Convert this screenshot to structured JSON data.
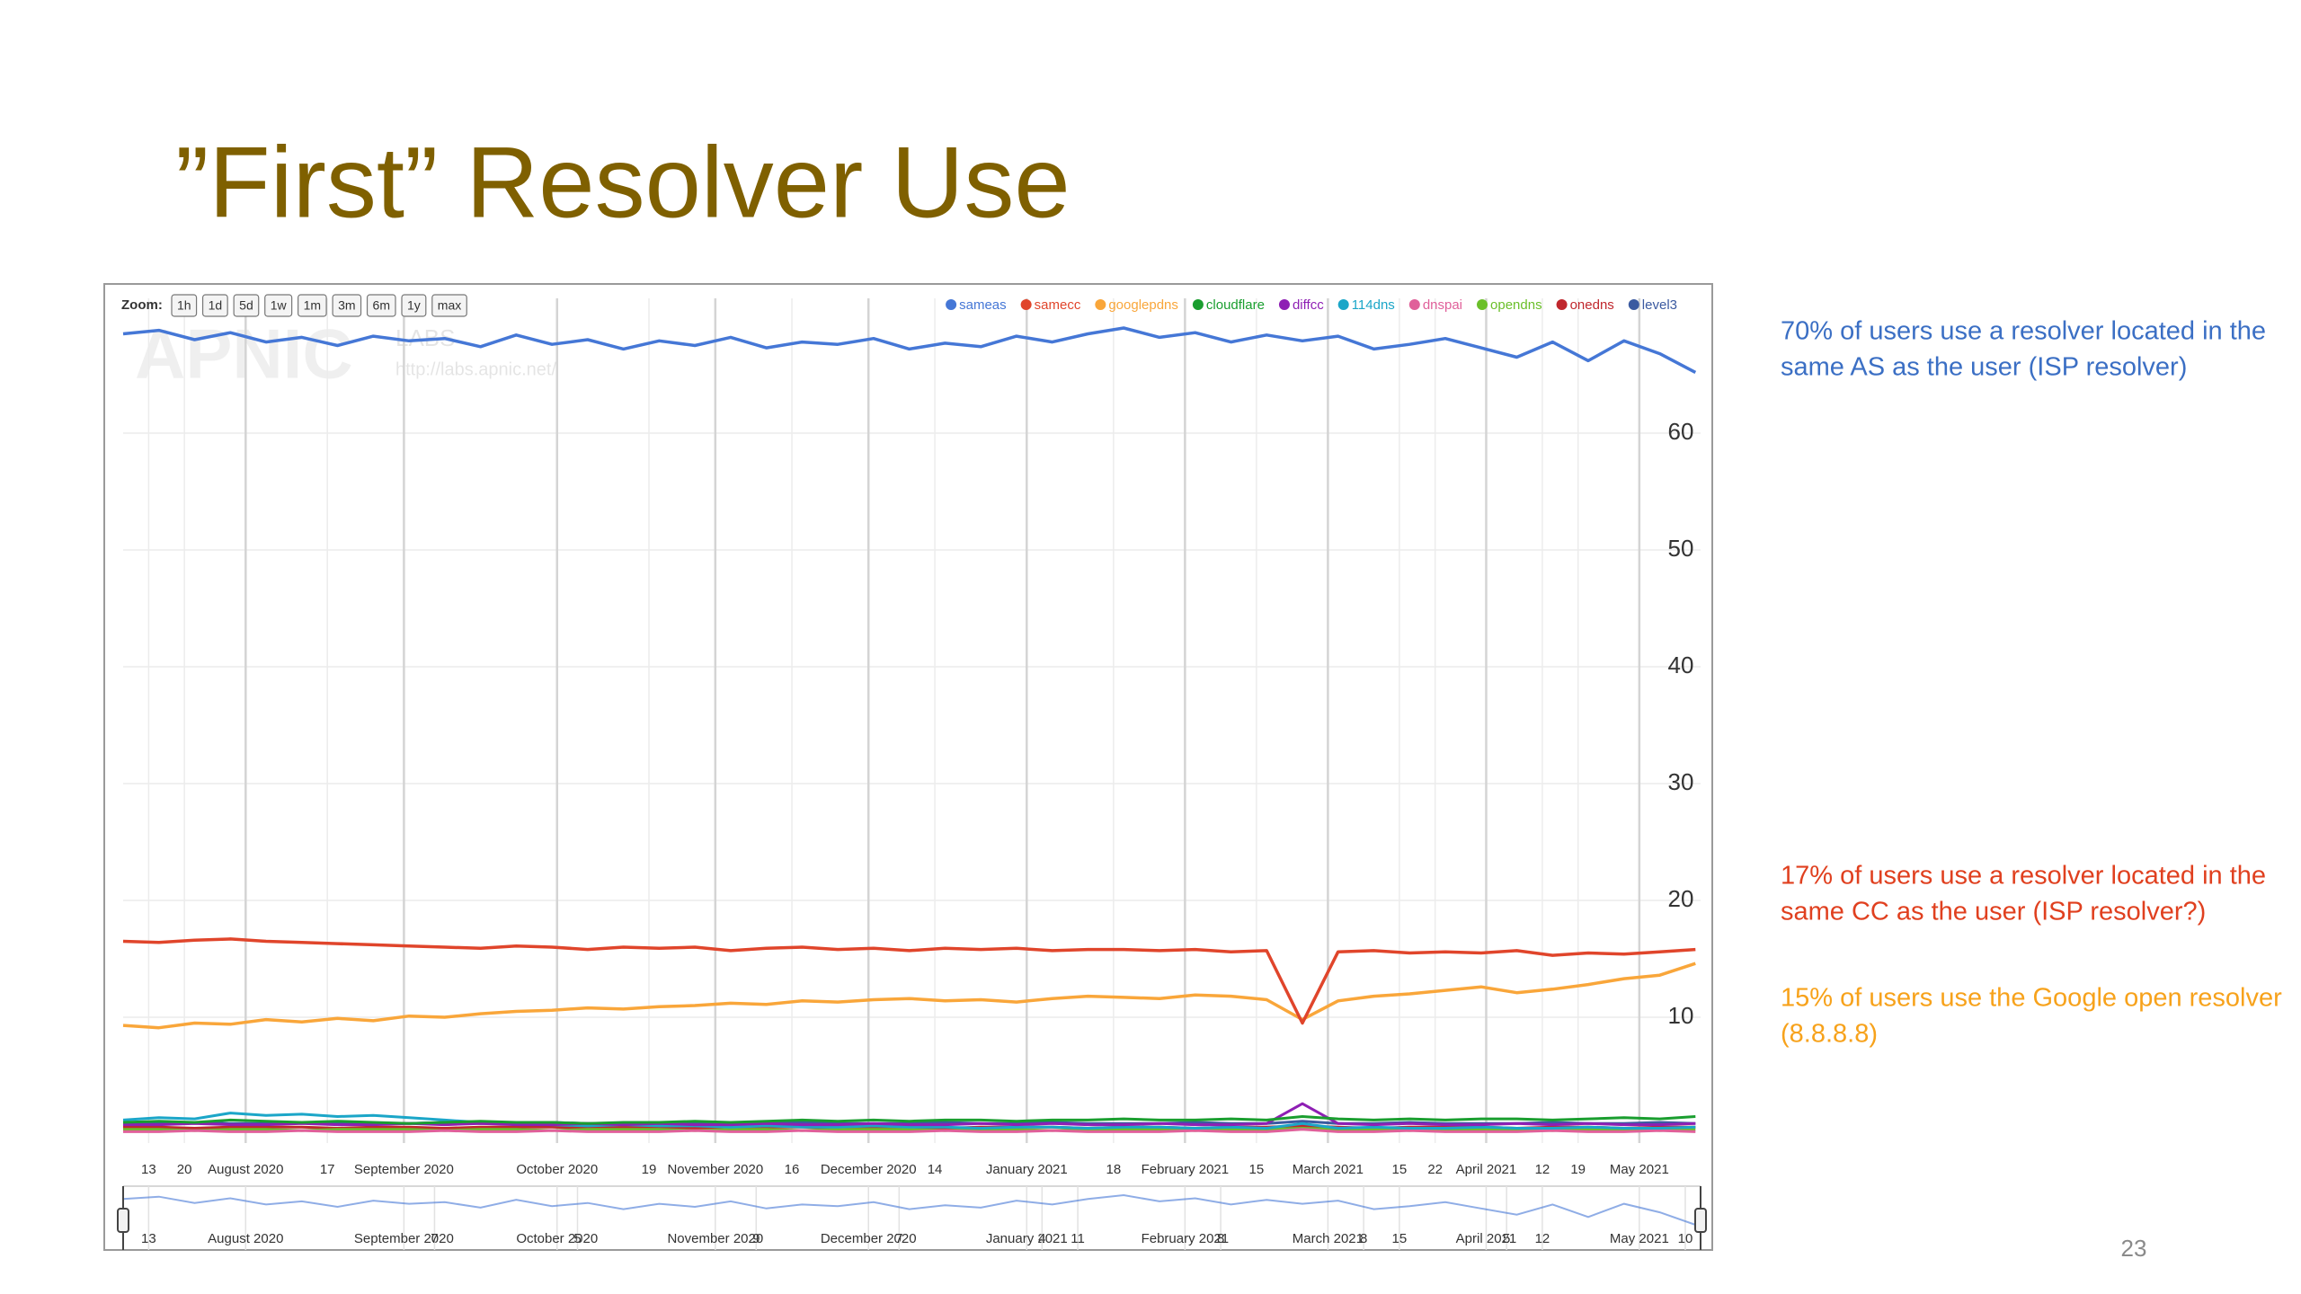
{
  "title": "”First” Resolver Use",
  "page_number": "23",
  "annotations": [
    {
      "color": "#3b6fc4",
      "lines": [
        "70% of users use a resolver located in the",
        "same AS as the user (ISP resolver)"
      ]
    },
    {
      "color": "#e0401f",
      "lines": [
        "17% of users use a resolver located in the",
        "same CC as the user (ISP resolver?)"
      ]
    },
    {
      "color": "#f7a21b",
      "lines": [
        "15% of users use the Google open resolver",
        "(8.8.8.8)"
      ]
    }
  ],
  "chart_data": {
    "type": "line",
    "zoom_label": "Zoom:",
    "zoom_buttons": [
      "1h",
      "1d",
      "5d",
      "1w",
      "1m",
      "3m",
      "6m",
      "1y",
      "max"
    ],
    "watermark": {
      "logo": "APNIC",
      "sub": "LABS",
      "url": "http://labs.apnic.net/"
    },
    "grid": true,
    "xlim": [
      "2020-07-08",
      "2021-05-13"
    ],
    "ylim": [
      0,
      70
    ],
    "yticks": [
      10,
      20,
      30,
      40,
      50,
      60
    ],
    "xticks": [
      {
        "value": "2020-07-13",
        "label": "13"
      },
      {
        "value": "2020-07-20",
        "label": "20"
      },
      {
        "value": "2020-08-01",
        "label": "August 2020"
      },
      {
        "value": "2020-08-17",
        "label": "17"
      },
      {
        "value": "2020-09-01",
        "label": "September 2020"
      },
      {
        "value": "2020-10-01",
        "label": "October 2020"
      },
      {
        "value": "2020-10-19",
        "label": "19"
      },
      {
        "value": "2020-11-01",
        "label": "November 2020"
      },
      {
        "value": "2020-11-16",
        "label": "16"
      },
      {
        "value": "2020-12-01",
        "label": "December 2020"
      },
      {
        "value": "2020-12-14",
        "label": "14"
      },
      {
        "value": "2021-01-01",
        "label": "January 2021"
      },
      {
        "value": "2021-01-18",
        "label": "18"
      },
      {
        "value": "2021-02-01",
        "label": "February 2021"
      },
      {
        "value": "2021-02-15",
        "label": "15"
      },
      {
        "value": "2021-03-01",
        "label": "March 2021"
      },
      {
        "value": "2021-03-15",
        "label": "15"
      },
      {
        "value": "2021-03-22",
        "label": "22"
      },
      {
        "value": "2021-04-01",
        "label": "April 2021"
      },
      {
        "value": "2021-04-12",
        "label": "12"
      },
      {
        "value": "2021-04-19",
        "label": "19"
      },
      {
        "value": "2021-05-01",
        "label": "May 2021"
      }
    ],
    "navigator_xticks": [
      {
        "value": "2020-07-13",
        "label": "13"
      },
      {
        "value": "2020-08-01",
        "label": "August 2020"
      },
      {
        "value": "2020-09-01",
        "label": "September 2020"
      },
      {
        "value": "2020-09-07",
        "label": "7"
      },
      {
        "value": "2020-10-01",
        "label": "October 2020"
      },
      {
        "value": "2020-10-05",
        "label": "5"
      },
      {
        "value": "2020-11-01",
        "label": "November 2020"
      },
      {
        "value": "2020-11-09",
        "label": "9"
      },
      {
        "value": "2020-12-01",
        "label": "December 2020"
      },
      {
        "value": "2020-12-07",
        "label": "7"
      },
      {
        "value": "2021-01-01",
        "label": "January 2021"
      },
      {
        "value": "2021-01-04",
        "label": "4"
      },
      {
        "value": "2021-01-11",
        "label": "11"
      },
      {
        "value": "2021-02-01",
        "label": "February 2021"
      },
      {
        "value": "2021-02-08",
        "label": "8"
      },
      {
        "value": "2021-03-01",
        "label": "March 2021"
      },
      {
        "value": "2021-03-08",
        "label": "8"
      },
      {
        "value": "2021-03-15",
        "label": "15"
      },
      {
        "value": "2021-04-01",
        "label": "April 2021"
      },
      {
        "value": "2021-04-05",
        "label": "5"
      },
      {
        "value": "2021-04-12",
        "label": "12"
      },
      {
        "value": "2021-05-01",
        "label": "May 2021"
      },
      {
        "value": "2021-05-10",
        "label": "10"
      }
    ],
    "x": [
      "2020-07-08",
      "2020-07-15",
      "2020-07-22",
      "2020-07-29",
      "2020-08-05",
      "2020-08-12",
      "2020-08-19",
      "2020-08-26",
      "2020-09-02",
      "2020-09-09",
      "2020-09-16",
      "2020-09-23",
      "2020-09-30",
      "2020-10-07",
      "2020-10-14",
      "2020-10-21",
      "2020-10-28",
      "2020-11-04",
      "2020-11-11",
      "2020-11-18",
      "2020-11-25",
      "2020-12-02",
      "2020-12-09",
      "2020-12-16",
      "2020-12-23",
      "2020-12-30",
      "2021-01-06",
      "2021-01-13",
      "2021-01-20",
      "2021-01-27",
      "2021-02-03",
      "2021-02-10",
      "2021-02-17",
      "2021-02-24",
      "2021-03-03",
      "2021-03-10",
      "2021-03-17",
      "2021-03-24",
      "2021-03-31",
      "2021-04-07",
      "2021-04-14",
      "2021-04-21",
      "2021-04-28",
      "2021-05-05",
      "2021-05-12"
    ],
    "series": [
      {
        "name": "sameas",
        "color": "#4577d6",
        "values": [
          68.5,
          68.8,
          68,
          68.6,
          67.8,
          68.2,
          67.5,
          68.3,
          67.9,
          68.1,
          67.4,
          68.4,
          67.6,
          68,
          67.2,
          67.9,
          67.5,
          68.2,
          67.3,
          67.8,
          67.6,
          68.1,
          67.2,
          67.7,
          67.4,
          68.3,
          67.8,
          68.5,
          69,
          68.2,
          68.6,
          67.8,
          68.4,
          67.9,
          68.3,
          67.2,
          67.6,
          68.1,
          67.3,
          66.5,
          67.8,
          66.2,
          67.9,
          66.8,
          65.2
        ]
      },
      {
        "name": "samecc",
        "color": "#e0452b",
        "values": [
          16.5,
          16.4,
          16.6,
          16.7,
          16.5,
          16.4,
          16.3,
          16.2,
          16.1,
          16,
          15.9,
          16.1,
          16,
          15.8,
          16,
          15.9,
          16,
          15.7,
          15.9,
          16,
          15.8,
          15.9,
          15.7,
          15.9,
          15.8,
          15.9,
          15.7,
          15.8,
          15.8,
          15.7,
          15.8,
          15.6,
          15.7,
          9.5,
          15.6,
          15.7,
          15.5,
          15.6,
          15.5,
          15.7,
          15.3,
          15.5,
          15.4,
          15.6,
          15.8
        ]
      },
      {
        "name": "googlepdns",
        "color": "#f9a63a",
        "values": [
          9.3,
          9.1,
          9.5,
          9.4,
          9.8,
          9.6,
          9.9,
          9.7,
          10.1,
          10,
          10.3,
          10.5,
          10.6,
          10.8,
          10.7,
          10.9,
          11,
          11.2,
          11.1,
          11.4,
          11.3,
          11.5,
          11.6,
          11.4,
          11.5,
          11.3,
          11.6,
          11.8,
          11.7,
          11.6,
          11.9,
          11.8,
          11.5,
          9.8,
          11.4,
          11.8,
          12,
          12.3,
          12.6,
          12.1,
          12.4,
          12.8,
          13.3,
          13.6,
          14.6
        ]
      },
      {
        "name": "cloudflare",
        "color": "#1a9e2f",
        "values": [
          1,
          1.1,
          1,
          1.2,
          1.1,
          1,
          1.1,
          1,
          0.9,
          1,
          1.1,
          1,
          1,
          0.9,
          1,
          1,
          1.1,
          1,
          1.1,
          1.2,
          1.1,
          1.2,
          1.1,
          1.2,
          1.2,
          1.1,
          1.2,
          1.2,
          1.3,
          1.2,
          1.2,
          1.3,
          1.2,
          1.5,
          1.3,
          1.2,
          1.3,
          1.2,
          1.3,
          1.3,
          1.2,
          1.3,
          1.4,
          1.3,
          1.5
        ]
      },
      {
        "name": "diffcc",
        "color": "#8e1fb4",
        "values": [
          0.8,
          0.8,
          0.9,
          0.8,
          0.8,
          0.9,
          0.8,
          0.8,
          0.9,
          0.8,
          0.9,
          0.8,
          0.8,
          0.9,
          0.8,
          0.9,
          0.8,
          0.8,
          0.9,
          0.8,
          0.8,
          0.9,
          0.8,
          0.8,
          0.9,
          0.8,
          0.9,
          0.8,
          0.8,
          0.9,
          0.8,
          0.8,
          0.9,
          2.6,
          0.9,
          0.8,
          0.9,
          0.8,
          0.8,
          0.9,
          0.8,
          0.9,
          0.8,
          0.8,
          0.9
        ]
      },
      {
        "name": "114dns",
        "color": "#1ba6c8",
        "values": [
          1.2,
          1.4,
          1.3,
          1.8,
          1.6,
          1.7,
          1.5,
          1.6,
          1.4,
          1.2,
          1,
          0.9,
          0.8,
          0.7,
          0.8,
          0.7,
          0.7,
          0.6,
          0.7,
          0.6,
          0.6,
          0.7,
          0.6,
          0.6,
          0.5,
          0.6,
          0.6,
          0.5,
          0.6,
          0.6,
          0.5,
          0.6,
          0.5,
          0.9,
          0.5,
          0.6,
          0.5,
          0.5,
          0.6,
          0.5,
          0.5,
          0.6,
          0.5,
          0.5,
          0.6
        ]
      },
      {
        "name": "dnspai",
        "color": "#e0609a",
        "values": [
          0.2,
          0.2,
          0.3,
          0.2,
          0.2,
          0.3,
          0.2,
          0.2,
          0.2,
          0.3,
          0.2,
          0.2,
          0.3,
          0.2,
          0.2,
          0.2,
          0.3,
          0.2,
          0.2,
          0.3,
          0.2,
          0.2,
          0.2,
          0.3,
          0.2,
          0.2,
          0.3,
          0.2,
          0.2,
          0.2,
          0.3,
          0.2,
          0.2,
          0.4,
          0.2,
          0.2,
          0.3,
          0.2,
          0.2,
          0.2,
          0.3,
          0.2,
          0.2,
          0.3,
          0.2
        ]
      },
      {
        "name": "opendns",
        "color": "#6bbf2a",
        "values": [
          0.4,
          0.4,
          0.3,
          0.4,
          0.4,
          0.3,
          0.4,
          0.4,
          0.4,
          0.3,
          0.4,
          0.4,
          0.3,
          0.4,
          0.4,
          0.4,
          0.3,
          0.4,
          0.4,
          0.3,
          0.4,
          0.4,
          0.4,
          0.3,
          0.4,
          0.4,
          0.3,
          0.4,
          0.4,
          0.4,
          0.3,
          0.4,
          0.4,
          0.5,
          0.4,
          0.4,
          0.3,
          0.4,
          0.4,
          0.4,
          0.3,
          0.4,
          0.4,
          0.3,
          0.4
        ]
      },
      {
        "name": "onedns",
        "color": "#c0272d",
        "values": [
          0.6,
          0.6,
          0.5,
          0.6,
          0.6,
          0.6,
          0.5,
          0.6,
          0.6,
          0.5,
          0.6,
          0.6,
          0.6,
          0.5,
          0.6,
          0.6,
          0.5,
          0.6,
          0.6,
          0.6,
          0.5,
          0.6,
          0.6,
          0.5,
          0.6,
          0.6,
          0.6,
          0.5,
          0.6,
          0.6,
          0.5,
          0.6,
          0.6,
          0.7,
          0.6,
          0.5,
          0.6,
          0.6,
          0.6,
          0.5,
          0.6,
          0.6,
          0.5,
          0.6,
          0.6
        ]
      },
      {
        "name": "level3",
        "color": "#3b5aa0",
        "values": [
          0.9,
          0.9,
          1,
          0.9,
          0.9,
          1,
          0.9,
          0.9,
          0.9,
          1,
          0.9,
          0.9,
          1,
          0.9,
          0.9,
          0.9,
          1,
          0.9,
          0.9,
          1,
          0.9,
          0.9,
          0.9,
          1,
          0.9,
          0.9,
          1,
          0.9,
          0.9,
          0.9,
          1,
          0.9,
          0.9,
          1.1,
          0.9,
          0.9,
          1,
          0.9,
          0.9,
          0.9,
          1,
          0.9,
          0.9,
          1,
          0.9
        ]
      }
    ]
  }
}
